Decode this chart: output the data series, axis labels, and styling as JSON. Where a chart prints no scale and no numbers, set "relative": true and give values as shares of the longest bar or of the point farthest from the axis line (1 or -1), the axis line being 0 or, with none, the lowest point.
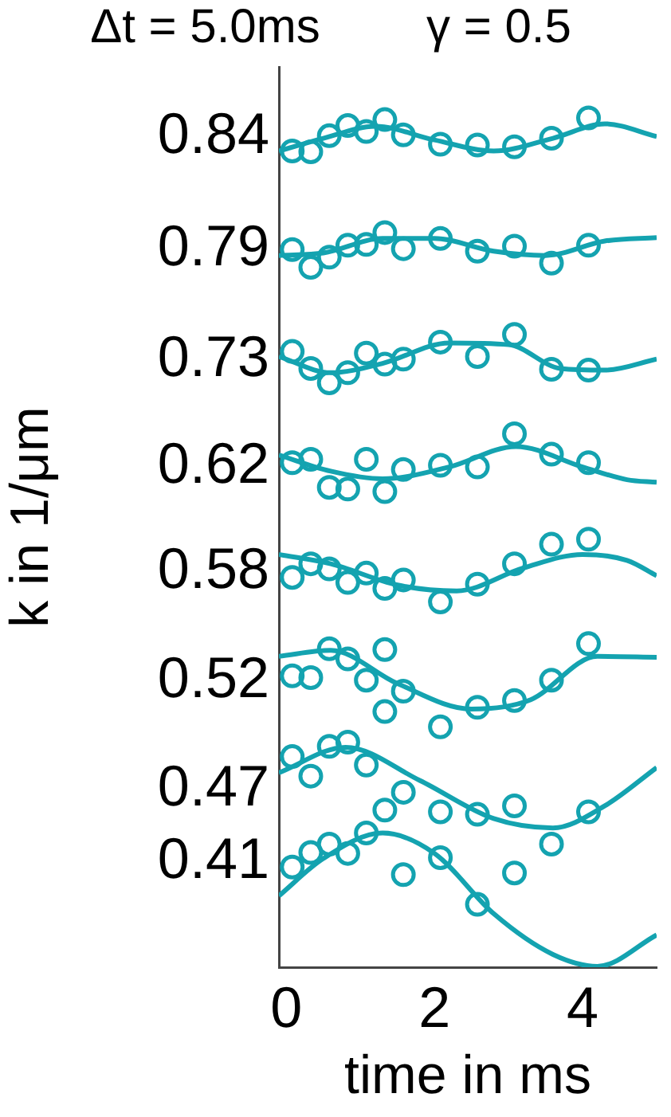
{
  "chart_data": {
    "type": "scatter",
    "title": "Δt = 5.0ms        γ = 0.5",
    "xlabel": "time in ms",
    "ylabel": "k in 1/μm",
    "marker": "circle",
    "grid": false,
    "relative": true,
    "xlim": [
      -0.1,
      5
    ],
    "xticks": [
      0,
      2,
      4
    ],
    "series": [
      {
        "type": "scatter",
        "name": "0.84",
        "color": "#14a3b0",
        "x": [
          0.08,
          0.33,
          0.58,
          0.83,
          1.08,
          1.33,
          1.58,
          2.08,
          2.58,
          3.08,
          3.58,
          4.08
        ],
        "values": [
          0.961,
          0.96,
          0.979,
          0.991,
          0.984,
          0.998,
          0.98,
          0.969,
          0.968,
          0.966,
          0.976,
          1
        ]
      },
      {
        "type": "line",
        "marker": "none",
        "color": "#14a3b0",
        "x": [
          -0.1,
          0.5,
          1.2,
          2.0,
          2.8,
          3.6,
          4.3,
          5.0
        ],
        "values": [
          0.961,
          0.976,
          0.99,
          0.974,
          0.961,
          0.976,
          0.993,
          0.978
        ]
      },
      {
        "type": "scatter",
        "name": "0.79",
        "color": "#14a3b0",
        "x": [
          0.08,
          0.33,
          0.58,
          0.83,
          1.08,
          1.33,
          1.58,
          2.08,
          2.58,
          3.08,
          3.58,
          4.08
        ],
        "values": [
          0.845,
          0.824,
          0.836,
          0.85,
          0.851,
          0.865,
          0.846,
          0.858,
          0.843,
          0.849,
          0.829,
          0.85
        ]
      },
      {
        "type": "line",
        "marker": "none",
        "color": "#14a3b0",
        "x": [
          -0.1,
          0.5,
          1.3,
          2.0,
          2.8,
          3.5,
          4.3,
          5.0
        ],
        "values": [
          0.838,
          0.841,
          0.858,
          0.858,
          0.843,
          0.838,
          0.855,
          0.859
        ]
      },
      {
        "type": "scatter",
        "name": "0.73",
        "color": "#14a3b0",
        "x": [
          0.08,
          0.33,
          0.58,
          0.83,
          1.08,
          1.33,
          1.58,
          2.08,
          2.58,
          3.08,
          3.58,
          4.08
        ],
        "values": [
          0.725,
          0.705,
          0.688,
          0.7,
          0.723,
          0.71,
          0.716,
          0.736,
          0.719,
          0.745,
          0.704,
          0.703
        ]
      },
      {
        "type": "line",
        "marker": "none",
        "color": "#14a3b0",
        "x": [
          -0.1,
          0.6,
          1.3,
          2.2,
          3.0,
          3.7,
          4.3,
          5.0
        ],
        "values": [
          0.719,
          0.7,
          0.711,
          0.735,
          0.733,
          0.705,
          0.703,
          0.716
        ]
      },
      {
        "type": "scatter",
        "name": "0.62",
        "color": "#14a3b0",
        "x": [
          0.08,
          0.33,
          0.58,
          0.83,
          1.08,
          1.33,
          1.58,
          2.08,
          2.58,
          3.08,
          3.58,
          4.08
        ],
        "values": [
          0.594,
          0.598,
          0.565,
          0.563,
          0.598,
          0.56,
          0.586,
          0.591,
          0.589,
          0.628,
          0.604,
          0.594
        ]
      },
      {
        "type": "line",
        "marker": "none",
        "color": "#14a3b0",
        "x": [
          -0.1,
          0.6,
          1.3,
          2.2,
          3.1,
          4.0,
          4.6,
          5.0
        ],
        "values": [
          0.603,
          0.584,
          0.575,
          0.589,
          0.613,
          0.589,
          0.574,
          0.571
        ]
      },
      {
        "type": "scatter",
        "name": "0.58",
        "color": "#14a3b0",
        "x": [
          0.08,
          0.33,
          0.58,
          0.83,
          1.08,
          1.33,
          1.58,
          2.08,
          2.58,
          3.08,
          3.58,
          4.08
        ],
        "values": [
          0.459,
          0.475,
          0.469,
          0.453,
          0.464,
          0.446,
          0.456,
          0.43,
          0.451,
          0.475,
          0.498,
          0.504
        ]
      },
      {
        "type": "line",
        "marker": "none",
        "color": "#14a3b0",
        "x": [
          -0.1,
          0.6,
          1.5,
          2.3,
          3.2,
          4.0,
          4.6,
          5.0
        ],
        "values": [
          0.486,
          0.475,
          0.45,
          0.443,
          0.47,
          0.486,
          0.479,
          0.461
        ]
      },
      {
        "type": "scatter",
        "name": "0.52",
        "color": "#14a3b0",
        "x": [
          0.08,
          0.33,
          0.58,
          0.83,
          1.08,
          1.33,
          1.33,
          1.58,
          2.08,
          2.58,
          3.08,
          3.58,
          4.08
        ],
        "values": [
          0.343,
          0.341,
          0.375,
          0.363,
          0.338,
          0.374,
          0.301,
          0.325,
          0.283,
          0.306,
          0.314,
          0.338,
          0.381
        ]
      },
      {
        "type": "line",
        "marker": "none",
        "color": "#14a3b0",
        "x": [
          -0.1,
          0.6,
          1.5,
          2.5,
          3.3,
          4.2,
          5.0
        ],
        "values": [
          0.366,
          0.373,
          0.334,
          0.304,
          0.315,
          0.366,
          0.365
        ]
      },
      {
        "type": "scatter",
        "name": "0.47",
        "color": "#14a3b0",
        "x": [
          0.08,
          0.33,
          0.58,
          0.83,
          1.08,
          1.33,
          1.58,
          2.08,
          2.58,
          3.08,
          3.58,
          4.08
        ],
        "values": [
          0.248,
          0.225,
          0.26,
          0.265,
          0.238,
          0.185,
          0.206,
          0.183,
          0.18,
          0.19,
          0.145,
          0.183
        ]
      },
      {
        "type": "line",
        "marker": "none",
        "color": "#14a3b0",
        "x": [
          -0.1,
          0.8,
          1.8,
          2.8,
          3.6,
          4.3,
          5.0
        ],
        "values": [
          0.229,
          0.259,
          0.22,
          0.175,
          0.164,
          0.19,
          0.235
        ]
      },
      {
        "type": "scatter",
        "name": "0.41",
        "color": "#14a3b0",
        "x": [
          0.08,
          0.33,
          0.58,
          0.83,
          1.08,
          1.58,
          2.08,
          2.58,
          3.08
        ],
        "values": [
          0.118,
          0.135,
          0.145,
          0.134,
          0.158,
          0.109,
          0.129,
          0.074,
          0.111
        ]
      },
      {
        "type": "line",
        "marker": "none",
        "color": "#14a3b0",
        "x": [
          -0.1,
          0.5,
          1.3,
          2.0,
          2.8,
          3.6,
          4.2,
          5.0
        ],
        "values": [
          0.084,
          0.128,
          0.158,
          0.134,
          0.063,
          0.015,
          0.001,
          0.038
        ]
      }
    ]
  }
}
